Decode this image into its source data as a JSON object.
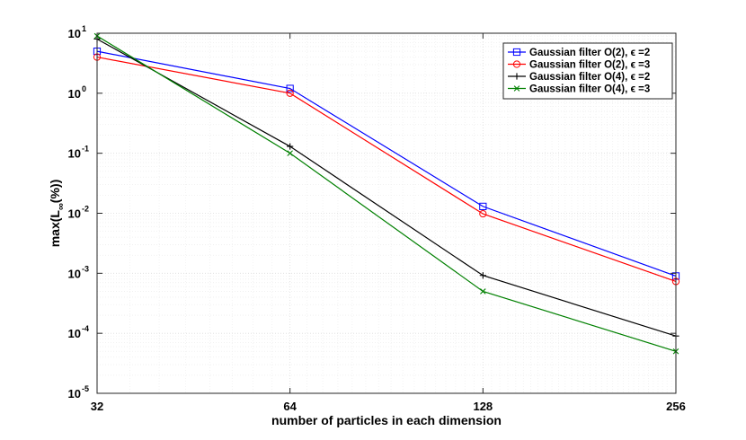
{
  "chart_data": {
    "type": "line",
    "title": "",
    "xlabel": "number of particles in each dimension",
    "ylabel_main": "max(L",
    "ylabel_sub": "∞",
    "ylabel_tail": "(%))",
    "x_scale": "log2",
    "y_scale": "log10",
    "xlim": [
      32,
      256
    ],
    "ylim": [
      1e-05,
      10
    ],
    "x_ticks": [
      32,
      64,
      128,
      256
    ],
    "x_tick_labels": [
      "32",
      "64",
      "128",
      "256"
    ],
    "y_ticks": [
      -5,
      -4,
      -3,
      -2,
      -1,
      0,
      1
    ],
    "y_tick_labels": [
      "10",
      "10",
      "10",
      "10",
      "10",
      "10",
      "10"
    ],
    "y_tick_exponents": [
      "-5",
      "-4",
      "-3",
      "-2",
      "-1",
      "0",
      "1"
    ],
    "grid": true,
    "legend_position": "top-right",
    "x": [
      32,
      64,
      128,
      256
    ],
    "series": [
      {
        "name": "Gaussian filter O(2), ϵ =2",
        "color": "#0000ff",
        "marker": "square",
        "values": [
          5.0,
          1.2,
          0.013,
          0.0009
        ]
      },
      {
        "name": "Gaussian filter O(2), ϵ =3",
        "color": "#ff0000",
        "marker": "circle",
        "values": [
          4.0,
          1.0,
          0.0098,
          0.00073
        ]
      },
      {
        "name": "Gaussian filter O(4), ϵ =2",
        "color": "#000000",
        "marker": "plus",
        "values": [
          8.0,
          0.13,
          0.00092,
          9e-05
        ]
      },
      {
        "name": "Gaussian filter O(4), ϵ =3",
        "color": "#008000",
        "marker": "x",
        "values": [
          9.0,
          0.1,
          0.0005,
          5e-05
        ]
      }
    ]
  }
}
